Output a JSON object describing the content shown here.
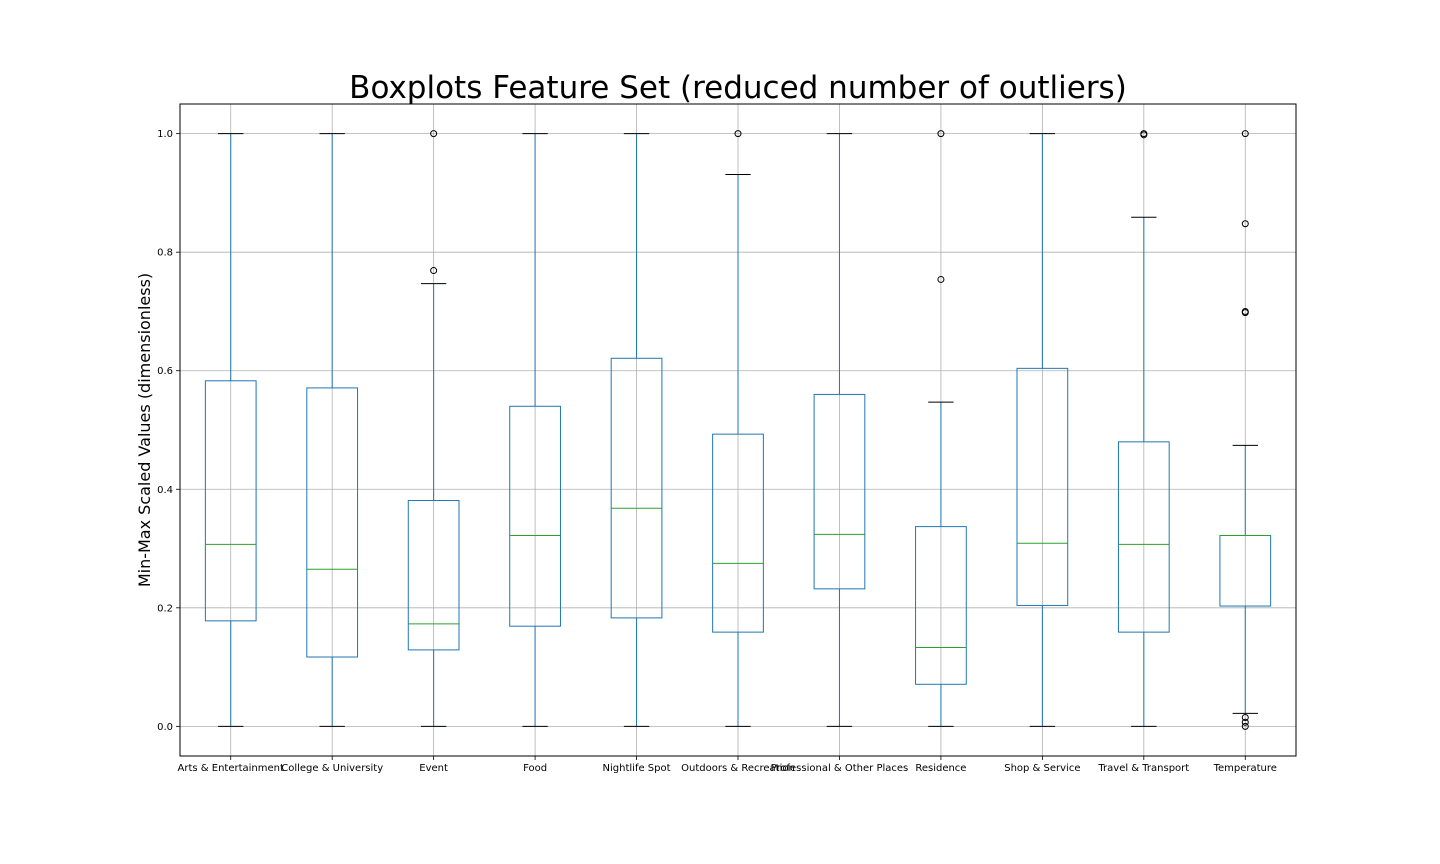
{
  "chart_data": {
    "type": "boxplot",
    "title": "Boxplots Feature Set (reduced number of outliers)",
    "xlabel": "",
    "ylabel": "Min-Max Scaled Values (dimensionless)",
    "ylim": [
      -0.05,
      1.05
    ],
    "yticks": [
      0.0,
      0.2,
      0.4,
      0.6,
      0.8,
      1.0
    ],
    "ytick_labels": [
      "0.0",
      "0.2",
      "0.4",
      "0.6",
      "0.8",
      "1.0"
    ],
    "grid": true,
    "colors": {
      "box": "#1f77b4",
      "median": "#2ca02c",
      "whisker_cap": "#000000",
      "outlier": "#000000",
      "grid": "#b0b0b0"
    },
    "categories": [
      "Arts & Entertainment",
      "College & University",
      "Event",
      "Food",
      "Nightlife Spot",
      "Outdoors & Recreation",
      "Professional & Other Places",
      "Residence",
      "Shop & Service",
      "Travel & Transport",
      "Temperature"
    ],
    "boxes": [
      {
        "whislo": 0.0,
        "q1": 0.178,
        "med": 0.307,
        "q3": 0.583,
        "whishi": 1.0,
        "fliers": []
      },
      {
        "whislo": 0.0,
        "q1": 0.117,
        "med": 0.265,
        "q3": 0.571,
        "whishi": 1.0,
        "fliers": []
      },
      {
        "whislo": 0.0,
        "q1": 0.129,
        "med": 0.173,
        "q3": 0.381,
        "whishi": 0.747,
        "fliers": [
          0.769,
          1.0
        ]
      },
      {
        "whislo": 0.0,
        "q1": 0.169,
        "med": 0.322,
        "q3": 0.54,
        "whishi": 1.0,
        "fliers": []
      },
      {
        "whislo": 0.0,
        "q1": 0.183,
        "med": 0.368,
        "q3": 0.621,
        "whishi": 1.0,
        "fliers": []
      },
      {
        "whislo": 0.0,
        "q1": 0.159,
        "med": 0.275,
        "q3": 0.493,
        "whishi": 0.931,
        "fliers": [
          1.0
        ]
      },
      {
        "whislo": 0.0,
        "q1": 0.232,
        "med": 0.324,
        "q3": 0.56,
        "whishi": 1.0,
        "fliers": []
      },
      {
        "whislo": 0.0,
        "q1": 0.071,
        "med": 0.133,
        "q3": 0.337,
        "whishi": 0.547,
        "fliers": [
          0.754,
          1.0
        ]
      },
      {
        "whislo": 0.0,
        "q1": 0.204,
        "med": 0.309,
        "q3": 0.604,
        "whishi": 1.0,
        "fliers": []
      },
      {
        "whislo": 0.0,
        "q1": 0.159,
        "med": 0.307,
        "q3": 0.48,
        "whishi": 0.859,
        "fliers": [
          0.998,
          1.0
        ]
      },
      {
        "whislo": 0.022,
        "q1": 0.203,
        "med": 0.322,
        "q3": 0.322,
        "whishi": 0.474,
        "fliers": [
          0.0,
          0.007,
          0.015,
          0.698,
          0.7,
          0.848,
          1.0
        ]
      }
    ]
  }
}
